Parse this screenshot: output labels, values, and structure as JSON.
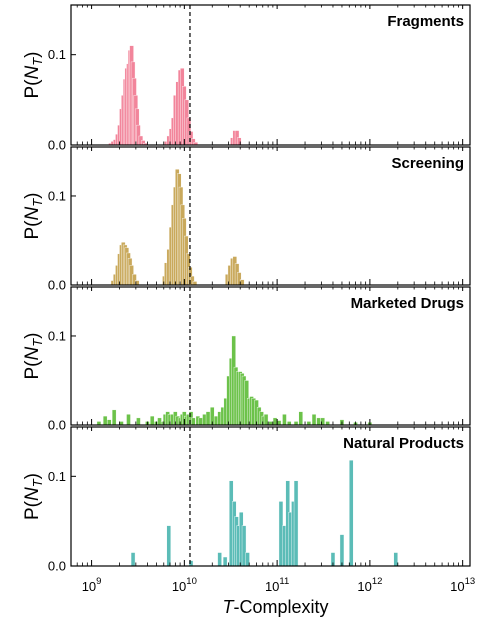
{
  "chart_data": {
    "type": "bar",
    "x_scale": "log",
    "xlim": [
      600000000.0,
      12000000000000.0
    ],
    "xticks": [
      {
        "value": 1000000000.0,
        "base": "10",
        "exp": "9"
      },
      {
        "value": 10000000000.0,
        "base": "10",
        "exp": "10"
      },
      {
        "value": 100000000000.0,
        "base": "10",
        "exp": "11"
      },
      {
        "value": 1000000000000.0,
        "base": "10",
        "exp": "12"
      },
      {
        "value": 10000000000000.0,
        "base": "10",
        "exp": "13"
      }
    ],
    "xlabel": {
      "italic": "T",
      "rest": "-Complexity"
    },
    "ylabel": {
      "prefix": "P(",
      "italic": "N",
      "sub": "T",
      "suffix": ")"
    },
    "yticks": [
      {
        "value": 0.0,
        "label": "0.0"
      },
      {
        "value": 0.1,
        "label": "0.1"
      }
    ],
    "ylim": [
      0,
      0.155
    ],
    "reference_line": {
      "x": 11500000000.0,
      "style": "dashed",
      "color": "#000000"
    },
    "panels": [
      {
        "title": "Fragments",
        "color": "#f2859b",
        "bins": [
          [
            1600000000.0,
            0.002
          ],
          [
            1700000000.0,
            0.004
          ],
          [
            1800000000.0,
            0.006
          ],
          [
            1900000000.0,
            0.012
          ],
          [
            2000000000.0,
            0.022
          ],
          [
            2100000000.0,
            0.04
          ],
          [
            2200000000.0,
            0.055
          ],
          [
            2300000000.0,
            0.073
          ],
          [
            2400000000.0,
            0.085
          ],
          [
            2500000000.0,
            0.09
          ],
          [
            2600000000.0,
            0.105
          ],
          [
            2700000000.0,
            0.11
          ],
          [
            2800000000.0,
            0.092
          ],
          [
            2900000000.0,
            0.074
          ],
          [
            3000000000.0,
            0.055
          ],
          [
            3100000000.0,
            0.04
          ],
          [
            3200000000.0,
            0.022
          ],
          [
            3400000000.0,
            0.01
          ],
          [
            3600000000.0,
            0.005
          ],
          [
            3800000000.0,
            0.002
          ],
          [
            6400000000.0,
            0.004
          ],
          [
            6800000000.0,
            0.01
          ],
          [
            7200000000.0,
            0.018
          ],
          [
            7600000000.0,
            0.03
          ],
          [
            8000000000.0,
            0.055
          ],
          [
            8500000000.0,
            0.07
          ],
          [
            9000000000.0,
            0.083
          ],
          [
            9500000000.0,
            0.085
          ],
          [
            10000000000.0,
            0.065
          ],
          [
            10600000000.0,
            0.05
          ],
          [
            11200000000.0,
            0.03
          ],
          [
            11800000000.0,
            0.015
          ],
          [
            12500000000.0,
            0.007
          ],
          [
            13300000000.0,
            0.003
          ],
          [
            33000000000.0,
            0.008
          ],
          [
            35000000000.0,
            0.016
          ],
          [
            37000000000.0,
            0.016
          ],
          [
            39000000000.0,
            0.008
          ]
        ]
      },
      {
        "title": "Screening",
        "color": "#c9a95c",
        "bins": [
          [
            1700000000.0,
            0.005
          ],
          [
            1800000000.0,
            0.012
          ],
          [
            1900000000.0,
            0.022
          ],
          [
            2000000000.0,
            0.035
          ],
          [
            2100000000.0,
            0.045
          ],
          [
            2200000000.0,
            0.048
          ],
          [
            2300000000.0,
            0.045
          ],
          [
            2400000000.0,
            0.042
          ],
          [
            2500000000.0,
            0.036
          ],
          [
            2600000000.0,
            0.03
          ],
          [
            2700000000.0,
            0.022
          ],
          [
            2900000000.0,
            0.012
          ],
          [
            3100000000.0,
            0.005
          ],
          [
            6100000000.0,
            0.01
          ],
          [
            6400000000.0,
            0.025
          ],
          [
            6800000000.0,
            0.04
          ],
          [
            7200000000.0,
            0.065
          ],
          [
            7600000000.0,
            0.09
          ],
          [
            8000000000.0,
            0.11
          ],
          [
            8400000000.0,
            0.13
          ],
          [
            8800000000.0,
            0.125
          ],
          [
            9200000000.0,
            0.11
          ],
          [
            9600000000.0,
            0.09
          ],
          [
            10000000000.0,
            0.075
          ],
          [
            10500000000.0,
            0.055
          ],
          [
            11000000000.0,
            0.035
          ],
          [
            11600000000.0,
            0.02
          ],
          [
            12200000000.0,
            0.01
          ],
          [
            13000000000.0,
            0.004
          ],
          [
            29000000000.0,
            0.012
          ],
          [
            31000000000.0,
            0.022
          ],
          [
            33000000000.0,
            0.03
          ],
          [
            35000000000.0,
            0.032
          ],
          [
            37000000000.0,
            0.024
          ],
          [
            39000000000.0,
            0.014
          ],
          [
            42000000000.0,
            0.006
          ]
        ]
      },
      {
        "title": "Marketed Drugs",
        "color": "#6cc24a",
        "bins": [
          [
            1200000000.0,
            0.004
          ],
          [
            1400000000.0,
            0.01
          ],
          [
            1550000000.0,
            0.006
          ],
          [
            1750000000.0,
            0.017
          ],
          [
            2100000000.0,
            0.004
          ],
          [
            2500000000.0,
            0.012
          ],
          [
            3200000000.0,
            0.008
          ],
          [
            4000000000.0,
            0.004
          ],
          [
            4500000000.0,
            0.01
          ],
          [
            5000000000.0,
            0.004
          ],
          [
            5400000000.0,
            0.008
          ],
          [
            5900000000.0,
            0.004
          ],
          [
            6200000000.0,
            0.012
          ],
          [
            6600000000.0,
            0.015
          ],
          [
            7000000000.0,
            0.012
          ],
          [
            7500000000.0,
            0.012
          ],
          [
            8000000000.0,
            0.015
          ],
          [
            8500000000.0,
            0.01
          ],
          [
            9000000000.0,
            0.008
          ],
          [
            9500000000.0,
            0.012
          ],
          [
            10000000000.0,
            0.015
          ],
          [
            10500000000.0,
            0.01
          ],
          [
            11000000000.0,
            0.012
          ],
          [
            11800000000.0,
            0.015
          ],
          [
            12500000000.0,
            0.008
          ],
          [
            14000000000.0,
            0.01
          ],
          [
            15000000000.0,
            0.008
          ],
          [
            16500000000.0,
            0.012
          ],
          [
            18000000000.0,
            0.015
          ],
          [
            20000000000.0,
            0.02
          ],
          [
            22000000000.0,
            0.01
          ],
          [
            24000000000.0,
            0.015
          ],
          [
            26000000000.0,
            0.02
          ],
          [
            28000000000.0,
            0.03
          ],
          [
            30000000000.0,
            0.055
          ],
          [
            32000000000.0,
            0.075
          ],
          [
            34000000000.0,
            0.1
          ],
          [
            36000000000.0,
            0.065
          ],
          [
            38000000000.0,
            0.06
          ],
          [
            40000000000.0,
            0.06
          ],
          [
            42000000000.0,
            0.058
          ],
          [
            44000000000.0,
            0.055
          ],
          [
            47000000000.0,
            0.05
          ],
          [
            50000000000.0,
            0.03
          ],
          [
            53000000000.0,
            0.032
          ],
          [
            56000000000.0,
            0.03
          ],
          [
            60000000000.0,
            0.028
          ],
          [
            64000000000.0,
            0.02
          ],
          [
            68000000000.0,
            0.015
          ],
          [
            72000000000.0,
            0.01
          ],
          [
            76000000000.0,
            0.012
          ],
          [
            85000000000.0,
            0.004
          ],
          [
            95000000000.0,
            0.008
          ],
          [
            105000000000.0,
            0.005
          ],
          [
            120000000000.0,
            0.012
          ],
          [
            135000000000.0,
            0.004
          ],
          [
            160000000000.0,
            0.004
          ],
          [
            180000000000.0,
            0.015
          ],
          [
            220000000000.0,
            0.004
          ],
          [
            250000000000.0,
            0.012
          ],
          [
            280000000000.0,
            0.008
          ],
          [
            310000000000.0,
            0.008
          ],
          [
            350000000000.0,
            0.004
          ],
          [
            500000000000.0,
            0.006
          ],
          [
            700000000000.0,
            0.003
          ],
          [
            1000000000000.0,
            0.003
          ]
        ]
      },
      {
        "title": "Natural Products",
        "color": "#5bbcb7",
        "bins": [
          [
            2800000000.0,
            0.015
          ],
          [
            6800000000.0,
            0.045
          ],
          [
            11800000000.0,
            0.006
          ],
          [
            24000000000.0,
            0.015
          ],
          [
            27500000000.0,
            0.01
          ],
          [
            32000000000.0,
            0.095
          ],
          [
            34500000000.0,
            0.072
          ],
          [
            36500000000.0,
            0.055
          ],
          [
            38500000000.0,
            0.045
          ],
          [
            41000000000.0,
            0.06
          ],
          [
            44000000000.0,
            0.045
          ],
          [
            48000000000.0,
            0.015
          ],
          [
            110000000000.0,
            0.072
          ],
          [
            120000000000.0,
            0.045
          ],
          [
            130000000000.0,
            0.095
          ],
          [
            140000000000.0,
            0.06
          ],
          [
            150000000000.0,
            0.072
          ],
          [
            160000000000.0,
            0.095
          ],
          [
            400000000000.0,
            0.015
          ],
          [
            500000000000.0,
            0.035
          ],
          [
            630000000000.0,
            0.118
          ],
          [
            1900000000000.0,
            0.015
          ]
        ]
      }
    ]
  }
}
